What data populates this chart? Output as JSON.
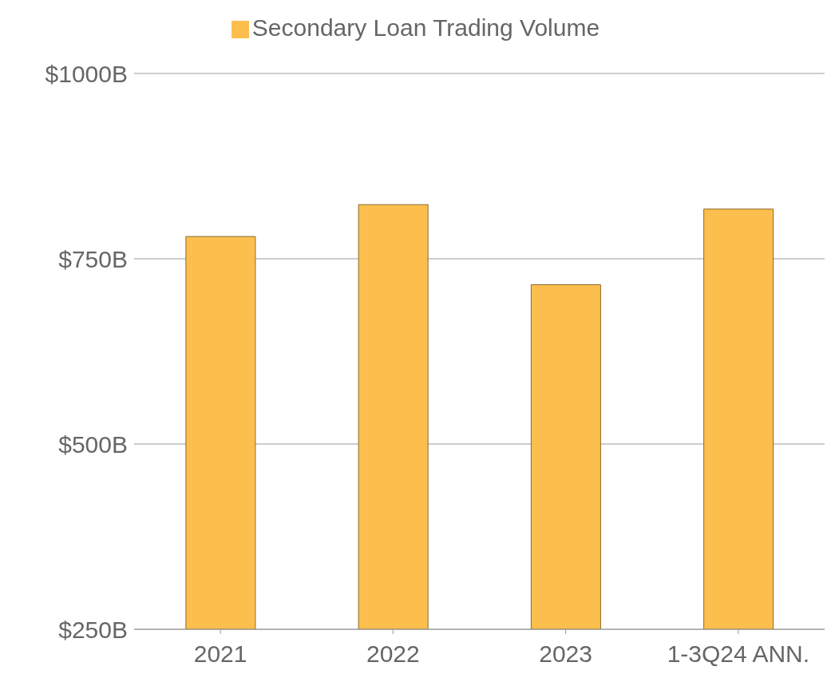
{
  "chart_data": {
    "type": "bar",
    "categories": [
      "2021",
      "2022",
      "2023",
      "1-3Q24 ANN."
    ],
    "series": [
      {
        "name": "Secondary Loan Trading Volume",
        "color": "#fcbf4e",
        "values": [
          780,
          823,
          715,
          817
        ]
      }
    ],
    "ylim": [
      250,
      1000
    ],
    "yticks": [
      {
        "value": 250,
        "label": "$250B"
      },
      {
        "value": 500,
        "label": "$500B"
      },
      {
        "value": 750,
        "label": "$750B"
      },
      {
        "value": 1000,
        "label": "$1000B"
      }
    ],
    "grid": "y",
    "legend": "top"
  }
}
